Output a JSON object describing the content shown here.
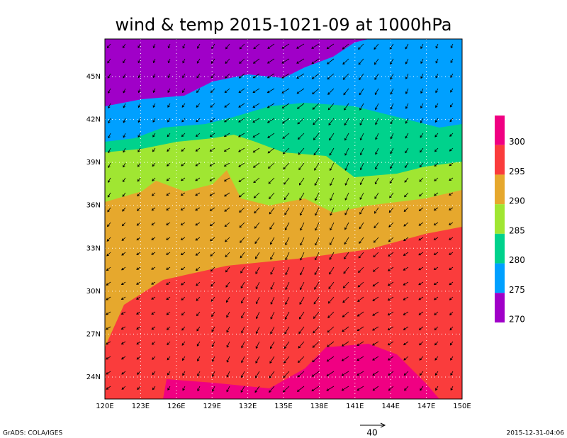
{
  "title": "wind & temp 2015-1021-09 at 1000hPa",
  "lon_labels": [
    "120E",
    "123E",
    "126E",
    "129E",
    "132E",
    "135E",
    "138E",
    "141E",
    "144E",
    "147E",
    "150E"
  ],
  "lat_labels": [
    "45N",
    "42N",
    "39N",
    "36N",
    "33N",
    "30N",
    "27N",
    "24N"
  ],
  "colorbar": {
    "labels": [
      "300",
      "295",
      "290",
      "285",
      "280",
      "275",
      "270"
    ],
    "colors": [
      "#f00082",
      "#fa3c3c",
      "#e6a82d",
      "#a0e632",
      "#00d28c",
      "#00a0ff",
      "#a000c8"
    ]
  },
  "footer_left": "GrADS: COLA/IGES",
  "vector_scale": "40",
  "footer_right": "2015-12-31-04:06"
}
